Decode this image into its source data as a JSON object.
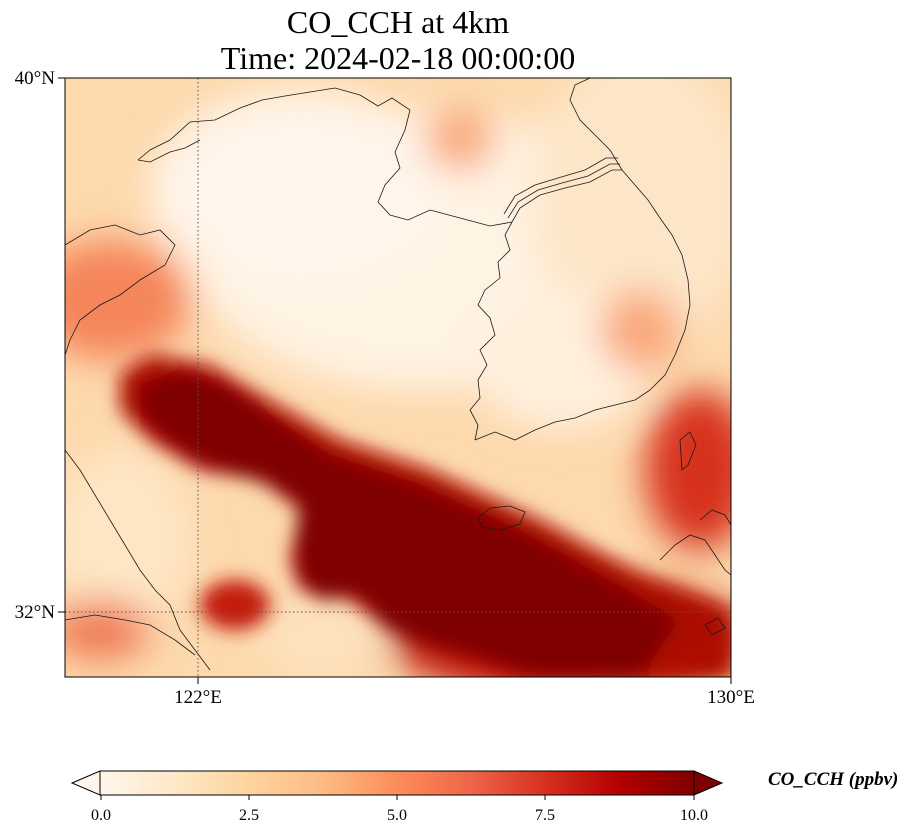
{
  "title": {
    "line1": "CO_CCH at 4km",
    "line2": "Time: 2024-02-18 00:00:00"
  },
  "map": {
    "lon_range": [
      118,
      130
    ],
    "lat_range": [
      30.8,
      40
    ],
    "lon_ticks": [
      {
        "value": 122,
        "label": "122°E"
      },
      {
        "value": 130,
        "label": "130°E"
      }
    ],
    "lat_ticks": [
      {
        "value": 40,
        "label": "40°N"
      },
      {
        "value": 32,
        "label": "32°N"
      }
    ],
    "gridlines": "dotted"
  },
  "colorbar": {
    "label": "CO_CCH (ppbv)",
    "range": [
      0,
      10
    ],
    "ticks": [
      {
        "value": 0,
        "label": "0.0"
      },
      {
        "value": 2.5,
        "label": "2.5"
      },
      {
        "value": 5,
        "label": "5.0"
      },
      {
        "value": 7.5,
        "label": "7.5"
      },
      {
        "value": 10,
        "label": "10.0"
      }
    ],
    "colormap": [
      "#fff7ec",
      "#fee8c8",
      "#fdd49e",
      "#fdbb84",
      "#fc8d59",
      "#ef6548",
      "#d7301f",
      "#b30000",
      "#7f0000"
    ],
    "extend": "both"
  }
}
